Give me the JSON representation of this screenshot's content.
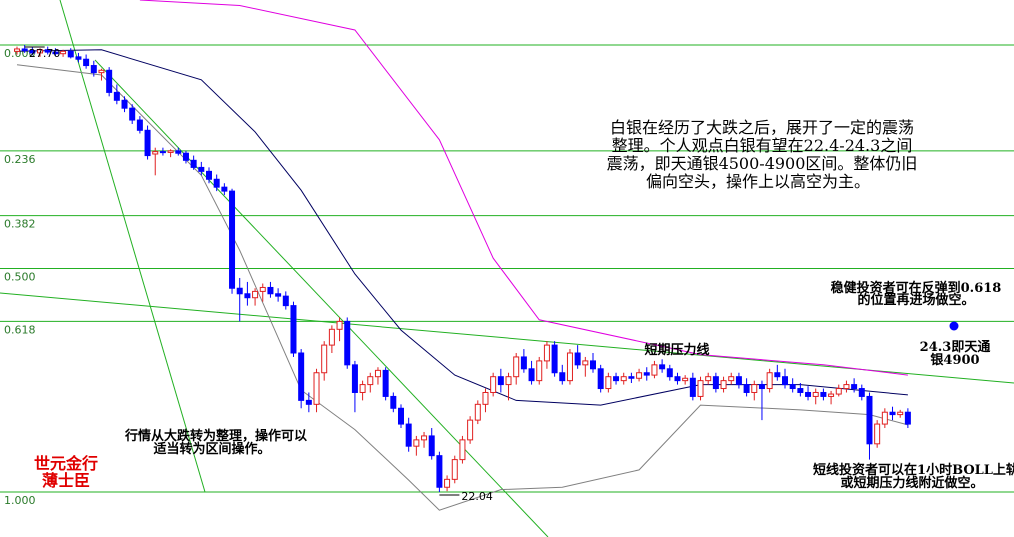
{
  "chart_data": {
    "type": "candlestick",
    "ylim": [
      21.47,
      28.27
    ],
    "up_color": "#e02020",
    "down_color": "#0000ff",
    "ohlc": [
      [
        27.62,
        27.68,
        27.58,
        27.65
      ],
      [
        27.65,
        27.7,
        27.6,
        27.63
      ],
      [
        27.63,
        27.67,
        27.57,
        27.6
      ],
      [
        27.6,
        27.66,
        27.55,
        27.64
      ],
      [
        27.64,
        27.68,
        27.58,
        27.61
      ],
      [
        27.61,
        27.66,
        27.56,
        27.59
      ],
      [
        27.59,
        27.64,
        27.55,
        27.62
      ],
      [
        27.62,
        27.66,
        27.53,
        27.55
      ],
      [
        27.55,
        27.6,
        27.48,
        27.52
      ],
      [
        27.52,
        27.58,
        27.4,
        27.44
      ],
      [
        27.44,
        27.5,
        27.3,
        27.35
      ],
      [
        27.35,
        27.4,
        27.25,
        27.38
      ],
      [
        27.38,
        27.42,
        27.05,
        27.1
      ],
      [
        27.1,
        27.2,
        26.95,
        27.0
      ],
      [
        27.0,
        27.05,
        26.85,
        26.9
      ],
      [
        26.9,
        26.95,
        26.7,
        26.75
      ],
      [
        26.75,
        26.8,
        26.58,
        26.62
      ],
      [
        26.62,
        26.68,
        26.25,
        26.3
      ],
      [
        26.32,
        26.4,
        26.05,
        26.35
      ],
      [
        26.35,
        26.4,
        26.3,
        26.34
      ],
      [
        26.34,
        26.38,
        26.28,
        26.36
      ],
      [
        26.36,
        26.4,
        26.3,
        26.33
      ],
      [
        26.33,
        26.36,
        26.2,
        26.24
      ],
      [
        26.24,
        26.3,
        26.12,
        26.15
      ],
      [
        26.15,
        26.22,
        26.05,
        26.1
      ],
      [
        26.1,
        26.15,
        25.95,
        26.0
      ],
      [
        26.0,
        26.06,
        25.85,
        25.9
      ],
      [
        25.9,
        25.95,
        25.8,
        25.85
      ],
      [
        25.85,
        25.88,
        24.55,
        24.62
      ],
      [
        24.62,
        24.75,
        24.2,
        24.55
      ],
      [
        24.55,
        24.7,
        24.4,
        24.5
      ],
      [
        24.5,
        24.62,
        24.4,
        24.58
      ],
      [
        24.58,
        24.68,
        24.45,
        24.63
      ],
      [
        24.63,
        24.7,
        24.5,
        24.55
      ],
      [
        24.55,
        24.62,
        24.45,
        24.52
      ],
      [
        24.52,
        24.58,
        24.35,
        24.4
      ],
      [
        24.4,
        24.45,
        23.75,
        23.8
      ],
      [
        23.8,
        23.85,
        23.1,
        23.2
      ],
      [
        23.2,
        23.3,
        23.05,
        23.15
      ],
      [
        23.15,
        23.6,
        23.05,
        23.55
      ],
      [
        23.55,
        23.95,
        23.45,
        23.9
      ],
      [
        23.9,
        24.15,
        23.8,
        24.1
      ],
      [
        24.1,
        24.25,
        23.95,
        24.2
      ],
      [
        24.2,
        24.25,
        23.6,
        23.65
      ],
      [
        23.65,
        23.7,
        23.05,
        23.3
      ],
      [
        23.3,
        23.45,
        23.2,
        23.4
      ],
      [
        23.4,
        23.55,
        23.3,
        23.5
      ],
      [
        23.5,
        23.62,
        23.4,
        23.58
      ],
      [
        23.58,
        23.62,
        23.2,
        23.25
      ],
      [
        23.25,
        23.3,
        23.05,
        23.1
      ],
      [
        23.1,
        23.15,
        22.85,
        22.9
      ],
      [
        22.9,
        22.98,
        22.55,
        22.62
      ],
      [
        22.62,
        22.75,
        22.5,
        22.7
      ],
      [
        22.7,
        22.8,
        22.6,
        22.75
      ],
      [
        22.75,
        22.85,
        22.45,
        22.5
      ],
      [
        22.5,
        22.55,
        22.04,
        22.1
      ],
      [
        22.1,
        22.25,
        22.05,
        22.2
      ],
      [
        22.2,
        22.5,
        22.15,
        22.45
      ],
      [
        22.45,
        22.75,
        22.4,
        22.7
      ],
      [
        22.7,
        23.0,
        22.65,
        22.95
      ],
      [
        22.95,
        23.2,
        22.9,
        23.15
      ],
      [
        23.15,
        23.35,
        23.05,
        23.3
      ],
      [
        23.3,
        23.55,
        23.25,
        23.5
      ],
      [
        23.5,
        23.6,
        23.3,
        23.4
      ],
      [
        23.4,
        23.55,
        23.2,
        23.5
      ],
      [
        23.5,
        23.8,
        23.4,
        23.75
      ],
      [
        23.75,
        23.85,
        23.55,
        23.6
      ],
      [
        23.6,
        23.7,
        23.4,
        23.45
      ],
      [
        23.45,
        23.75,
        23.4,
        23.7
      ],
      [
        23.7,
        23.95,
        23.6,
        23.9
      ],
      [
        23.9,
        23.95,
        23.5,
        23.55
      ],
      [
        23.55,
        23.65,
        23.4,
        23.45
      ],
      [
        23.45,
        23.85,
        23.4,
        23.8
      ],
      [
        23.8,
        23.9,
        23.6,
        23.65
      ],
      [
        23.65,
        23.75,
        23.5,
        23.7
      ],
      [
        23.7,
        23.8,
        23.55,
        23.6
      ],
      [
        23.6,
        23.65,
        23.3,
        23.35
      ],
      [
        23.35,
        23.55,
        23.3,
        23.5
      ],
      [
        23.5,
        23.55,
        23.4,
        23.45
      ],
      [
        23.45,
        23.55,
        23.4,
        23.5
      ],
      [
        23.5,
        23.55,
        23.42,
        23.48
      ],
      [
        23.48,
        23.6,
        23.44,
        23.55
      ],
      [
        23.55,
        23.62,
        23.45,
        23.52
      ],
      [
        23.52,
        23.7,
        23.48,
        23.65
      ],
      [
        23.65,
        23.72,
        23.55,
        23.6
      ],
      [
        23.6,
        23.65,
        23.45,
        23.5
      ],
      [
        23.5,
        23.55,
        23.4,
        23.45
      ],
      [
        23.45,
        23.52,
        23.4,
        23.48
      ],
      [
        23.48,
        23.55,
        23.2,
        23.25
      ],
      [
        23.25,
        23.5,
        23.2,
        23.45
      ],
      [
        23.45,
        23.55,
        23.4,
        23.5
      ],
      [
        23.5,
        23.55,
        23.3,
        23.35
      ],
      [
        23.35,
        23.5,
        23.3,
        23.45
      ],
      [
        23.45,
        23.55,
        23.4,
        23.5
      ],
      [
        23.5,
        23.55,
        23.35,
        23.4
      ],
      [
        23.4,
        23.48,
        23.25,
        23.3
      ],
      [
        23.3,
        23.45,
        23.2,
        23.4
      ],
      [
        23.4,
        23.45,
        22.95,
        23.35
      ],
      [
        23.35,
        23.6,
        23.3,
        23.55
      ],
      [
        23.55,
        23.65,
        23.45,
        23.5
      ],
      [
        23.5,
        23.6,
        23.35,
        23.4
      ],
      [
        23.4,
        23.48,
        23.3,
        23.35
      ],
      [
        23.35,
        23.42,
        23.25,
        23.3
      ],
      [
        23.3,
        23.38,
        23.2,
        23.25
      ],
      [
        23.25,
        23.35,
        23.15,
        23.3
      ],
      [
        23.3,
        23.35,
        23.2,
        23.25
      ],
      [
        23.25,
        23.32,
        23.15,
        23.28
      ],
      [
        23.28,
        23.4,
        23.25,
        23.35
      ],
      [
        23.35,
        23.45,
        23.3,
        23.4
      ],
      [
        23.4,
        23.48,
        23.3,
        23.35
      ],
      [
        23.35,
        23.4,
        23.2,
        23.25
      ],
      [
        23.25,
        23.3,
        22.45,
        22.65
      ],
      [
        22.65,
        22.95,
        22.6,
        22.9
      ],
      [
        22.9,
        23.1,
        22.85,
        23.05
      ],
      [
        23.05,
        23.12,
        22.95,
        23.02
      ],
      [
        23.02,
        23.08,
        22.98,
        23.05
      ],
      [
        23.05,
        23.1,
        22.85,
        22.9
      ]
    ],
    "series": [
      {
        "color": "#000060",
        "x": [
          0,
          11,
          24,
          31,
          37,
          44,
          50,
          57,
          65,
          76,
          89,
          102,
          116
        ],
        "values": [
          27.62,
          27.64,
          27.26,
          26.6,
          25.86,
          24.8,
          24.09,
          23.52,
          23.2,
          23.14,
          23.4,
          23.4,
          23.27
        ]
      },
      {
        "color": "#e000e0",
        "x": [
          16,
          29,
          44,
          55,
          62,
          68,
          89,
          105,
          116
        ],
        "values": [
          28.27,
          28.2,
          27.89,
          26.5,
          25.0,
          24.22,
          23.78,
          23.65,
          23.52
        ]
      },
      {
        "color": "#808080",
        "x": [
          0,
          11,
          24,
          29,
          37,
          44,
          51,
          55,
          63,
          71,
          81,
          89,
          102,
          111,
          116
        ],
        "values": [
          27.45,
          27.32,
          26.05,
          25.1,
          23.33,
          22.83,
          22.19,
          21.81,
          22.07,
          22.1,
          22.32,
          23.14,
          23.08,
          23.02,
          22.89
        ]
      }
    ],
    "fib_levels": [
      {
        "label": "0.000",
        "price": 27.7
      },
      {
        "label": "0.236",
        "price": 26.36
      },
      {
        "label": "0.382",
        "price": 25.54
      },
      {
        "label": "0.500",
        "price": 24.87
      },
      {
        "label": "0.618",
        "price": 24.2
      },
      {
        "label": "1.000",
        "price": 22.04
      }
    ],
    "extremes": [
      {
        "value": 27.7,
        "label": "27.70",
        "index": 1
      },
      {
        "value": 22.04,
        "label": "22.04",
        "index": 55
      }
    ],
    "annotations": {
      "main": [
        "白银在经历了大跌之后，展开了一定的震荡",
        "整理。个人观点白银有望在22.4-24.3之间",
        "震荡，即天通银4500-4900区间。整体仍旧",
        "偏向空头，操作上以高空为主。"
      ],
      "steady": [
        "稳健投资者可在反弹到0.618",
        "的位置再进场做空。"
      ],
      "target": [
        "24.3即天通",
        "银4900"
      ],
      "pressure_line": "短期压力线",
      "range": [
        "行情从大跌转为整理，操作可以",
        "适当转为区间操作。"
      ],
      "short_term": [
        "短线投资者可以在1小时BOLL上轨",
        "或短期压力线附近做空。"
      ],
      "author": [
        "世元金行",
        "薄士臣"
      ]
    }
  }
}
